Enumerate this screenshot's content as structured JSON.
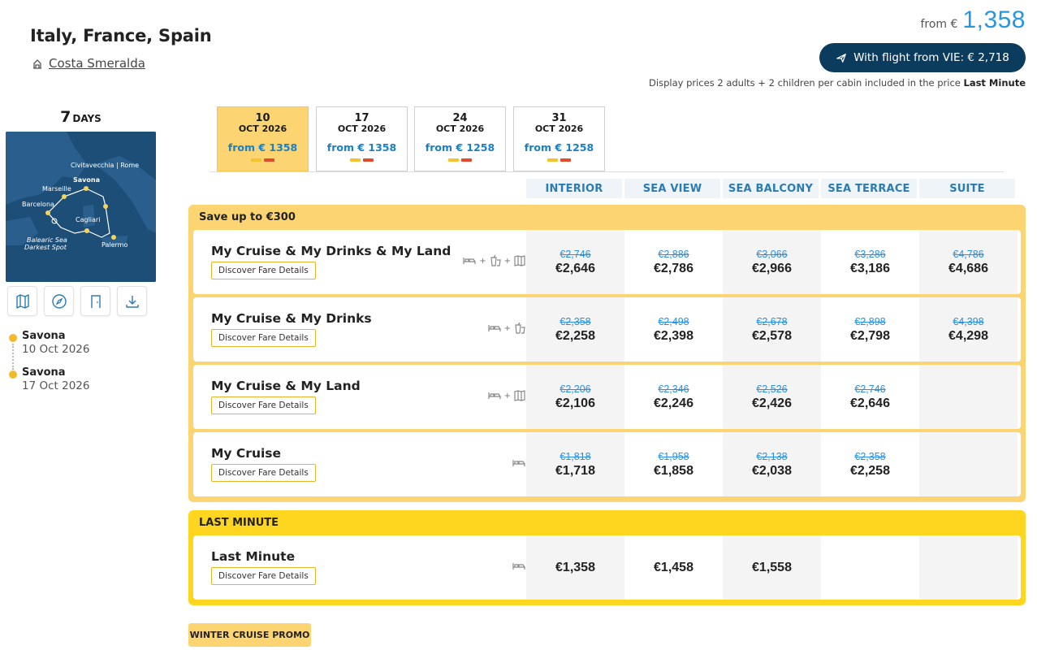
{
  "header": {
    "title": "Italy, France, Spain",
    "ship": "Costa Smeralda",
    "price_from_label": "from €",
    "price_from_value": "1,358",
    "flight_button": "With flight from VIE: € 2,718",
    "display_note": "Display prices 2 adults + 2 children per cabin included in the price",
    "display_note_bold": "Last Minute"
  },
  "left": {
    "days_number": "7",
    "days_unit": "DAYS",
    "map_labels": {
      "civitavecchia": "Civitavecchia | Rome",
      "savona": "Savona",
      "marseille": "Marseille",
      "barcelona": "Barcelona",
      "cagliari": "Cagliari",
      "palermo": "Palermo",
      "balearic": "Balearic Sea",
      "darkest": "Darkest Spot"
    },
    "itinerary": [
      {
        "port": "Savona",
        "date": "10 Oct 2026"
      },
      {
        "port": "Savona",
        "date": "17 Oct 2026"
      }
    ]
  },
  "date_tabs": [
    {
      "day": "10",
      "month": "OCT 2026",
      "from": "from € 1358",
      "active": true
    },
    {
      "day": "17",
      "month": "OCT 2026",
      "from": "from € 1358",
      "active": false
    },
    {
      "day": "24",
      "month": "OCT 2026",
      "from": "from € 1258",
      "active": false
    },
    {
      "day": "31",
      "month": "OCT 2026",
      "from": "from € 1258",
      "active": false
    }
  ],
  "cabins": [
    "INTERIOR",
    "SEA VIEW",
    "SEA BALCONY",
    "SEA TERRACE",
    "SUITE"
  ],
  "groups": [
    {
      "title": "Save up to €300",
      "fares": [
        {
          "name": "My Cruise & My Drinks & My Land",
          "button": "Discover Fare Details",
          "old": [
            "€2,746",
            "€2,886",
            "€3,066",
            "€3,286",
            "€4,786"
          ],
          "new": [
            "€2,646",
            "€2,786",
            "€2,966",
            "€3,186",
            "€4,686"
          ]
        },
        {
          "name": "My Cruise & My Drinks",
          "button": "Discover Fare Details",
          "old": [
            "€2,358",
            "€2,498",
            "€2,678",
            "€2,898",
            "€4,398"
          ],
          "new": [
            "€2,258",
            "€2,398",
            "€2,578",
            "€2,798",
            "€4,298"
          ]
        },
        {
          "name": "My Cruise & My Land",
          "button": "Discover Fare Details",
          "old": [
            "€2,206",
            "€2,346",
            "€2,526",
            "€2,746",
            ""
          ],
          "new": [
            "€2,106",
            "€2,246",
            "€2,426",
            "€2,646",
            ""
          ]
        },
        {
          "name": "My Cruise",
          "button": "Discover Fare Details",
          "old": [
            "€1,818",
            "€1,958",
            "€2,138",
            "€2,358",
            ""
          ],
          "new": [
            "€1,718",
            "€1,858",
            "€2,038",
            "€2,258",
            ""
          ]
        }
      ]
    },
    {
      "title": "LAST MINUTE",
      "fares": [
        {
          "name": "Last Minute",
          "button": "Discover Fare Details",
          "old": [
            "",
            "",
            "",
            "",
            ""
          ],
          "new": [
            "€1,358",
            "€1,458",
            "€1,558",
            "",
            ""
          ]
        }
      ]
    }
  ],
  "promo_label": "WINTER CRUISE PROMO"
}
